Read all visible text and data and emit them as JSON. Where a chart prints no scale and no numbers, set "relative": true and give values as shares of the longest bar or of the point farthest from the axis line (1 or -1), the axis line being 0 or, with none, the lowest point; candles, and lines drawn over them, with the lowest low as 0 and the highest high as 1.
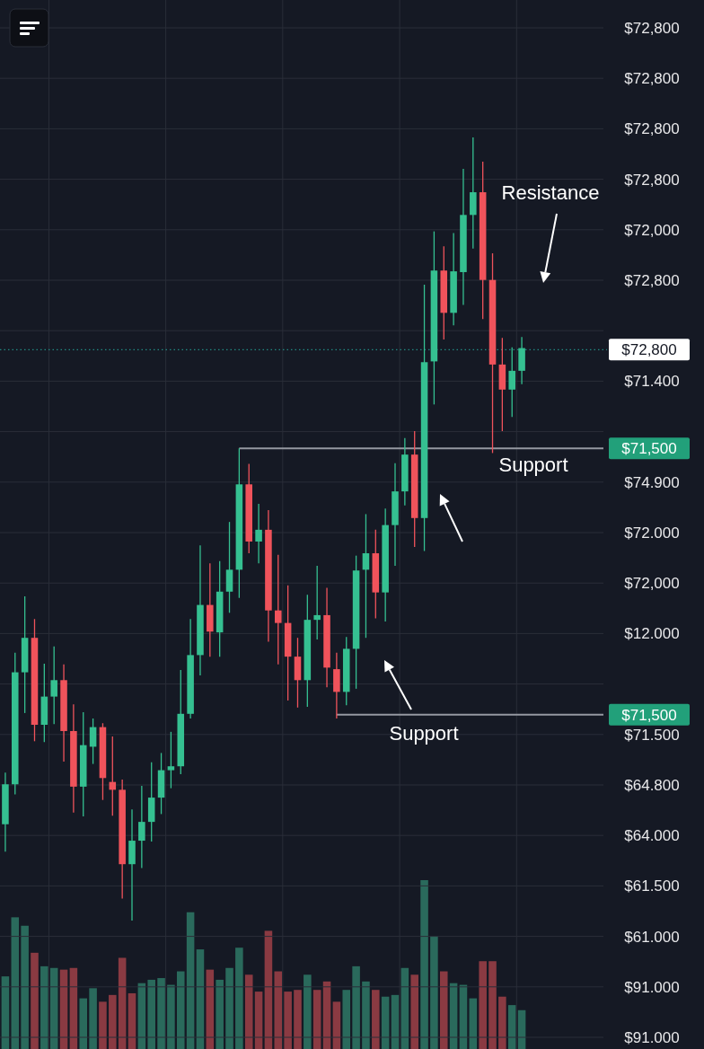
{
  "chart_data": [
    {
      "type": "candlestick",
      "relative": true,
      "grid": true,
      "categories": [
        null,
        null,
        null,
        null,
        null,
        null,
        null,
        null,
        null,
        null,
        null,
        null,
        null,
        null,
        null,
        null,
        null,
        null,
        null,
        null,
        null,
        null,
        null,
        null,
        null,
        null,
        null,
        null,
        null,
        null,
        null,
        null,
        null,
        null,
        null,
        null,
        null,
        null,
        null,
        null,
        null,
        null,
        null,
        null,
        null,
        null,
        null,
        null,
        null,
        null,
        null,
        null,
        null,
        null
      ],
      "ohlc": [
        [
          0.123,
          0.189,
          0.088,
          0.174
        ],
        [
          0.174,
          0.342,
          0.161,
          0.317
        ],
        [
          0.317,
          0.414,
          0.265,
          0.361
        ],
        [
          0.361,
          0.385,
          0.229,
          0.25
        ],
        [
          0.25,
          0.328,
          0.228,
          0.286
        ],
        [
          0.286,
          0.35,
          0.251,
          0.307
        ],
        [
          0.307,
          0.327,
          0.203,
          0.242
        ],
        [
          0.242,
          0.276,
          0.138,
          0.171
        ],
        [
          0.171,
          0.266,
          0.133,
          0.224
        ],
        [
          0.222,
          0.258,
          0.2,
          0.247
        ],
        [
          0.247,
          0.252,
          0.154,
          0.182
        ],
        [
          0.177,
          0.235,
          0.134,
          0.167
        ],
        [
          0.167,
          0.18,
          0.028,
          0.072
        ],
        [
          0.072,
          0.142,
          0,
          0.102
        ],
        [
          0.102,
          0.172,
          0.067,
          0.126
        ],
        [
          0.126,
          0.202,
          0.101,
          0.157
        ],
        [
          0.157,
          0.214,
          0.136,
          0.192
        ],
        [
          0.192,
          0.241,
          0.169,
          0.197
        ],
        [
          0.197,
          0.32,
          0.187,
          0.264
        ],
        [
          0.264,
          0.385,
          0.258,
          0.339
        ],
        [
          0.339,
          0.479,
          0.313,
          0.403
        ],
        [
          0.403,
          0.456,
          0.337,
          0.369
        ],
        [
          0.368,
          0.459,
          0.337,
          0.42
        ],
        [
          0.42,
          0.509,
          0.393,
          0.448
        ],
        [
          0.448,
          0.603,
          0.412,
          0.557
        ],
        [
          0.557,
          0.583,
          0.469,
          0.484
        ],
        [
          0.484,
          0.532,
          0.456,
          0.499
        ],
        [
          0.499,
          0.524,
          0.356,
          0.396
        ],
        [
          0.396,
          0.467,
          0.327,
          0.38
        ],
        [
          0.38,
          0.428,
          0.281,
          0.337
        ],
        [
          0.337,
          0.361,
          0.272,
          0.307
        ],
        [
          0.307,
          0.416,
          0.273,
          0.384
        ],
        [
          0.384,
          0.453,
          0.359,
          0.39
        ],
        [
          0.39,
          0.425,
          0.298,
          0.323
        ],
        [
          0.321,
          0.342,
          0.258,
          0.292
        ],
        [
          0.292,
          0.362,
          0.275,
          0.347
        ],
        [
          0.347,
          0.466,
          0.296,
          0.447
        ],
        [
          0.448,
          0.519,
          0.361,
          0.469
        ],
        [
          0.469,
          0.499,
          0.386,
          0.419
        ],
        [
          0.419,
          0.526,
          0.382,
          0.505
        ],
        [
          0.505,
          0.584,
          0.453,
          0.548
        ],
        [
          0.548,
          0.616,
          0.53,
          0.595
        ],
        [
          0.595,
          0.625,
          0.477,
          0.514
        ],
        [
          0.514,
          0.812,
          0.472,
          0.713
        ],
        [
          0.714,
          0.88,
          0.659,
          0.83
        ],
        [
          0.83,
          0.861,
          0.742,
          0.776
        ],
        [
          0.776,
          0.878,
          0.76,
          0.829
        ],
        [
          0.828,
          0.96,
          0.786,
          0.901
        ],
        [
          0.901,
          1,
          0.858,
          0.93
        ],
        [
          0.93,
          0.969,
          0.768,
          0.818
        ],
        [
          0.818,
          0.852,
          0.597,
          0.71
        ],
        [
          0.71,
          0.744,
          0.625,
          0.678
        ],
        [
          0.678,
          0.732,
          0.643,
          0.702
        ],
        [
          0.702,
          0.745,
          0.685,
          0.731
        ]
      ],
      "ref_lines": [
        {
          "axis": "y",
          "value": 0.729,
          "color": "#26a69a",
          "line_style": "dotted"
        },
        {
          "axis": "y",
          "value": 0.603,
          "color": "#9598a1",
          "line_style": "solid"
        },
        {
          "axis": "y",
          "value": 0.263,
          "color": "#9598a1",
          "line_style": "solid"
        }
      ],
      "annotations": [
        "Resistance",
        "Support",
        "Support",
        "$72,800",
        "$72,800",
        "$72,800",
        "$72,800",
        "$72,000",
        "$72,800",
        "$72,800",
        "$71.400",
        "$71,500",
        "$74.900",
        "$72.000",
        "$72,000",
        "$12.000",
        "$71,500",
        "$71.500",
        "$64.800",
        "$64.000",
        "$61.500",
        "$61.000",
        "$91.000",
        "$91.000"
      ]
    },
    {
      "type": "bar",
      "relative": true,
      "categories": [
        null,
        null,
        null,
        null,
        null,
        null,
        null,
        null,
        null,
        null,
        null,
        null,
        null,
        null,
        null,
        null,
        null,
        null,
        null,
        null,
        null,
        null,
        null,
        null,
        null,
        null,
        null,
        null,
        null,
        null,
        null,
        null,
        null,
        null,
        null,
        null,
        null,
        null,
        null,
        null,
        null,
        null,
        null,
        null,
        null,
        null,
        null,
        null,
        null,
        null,
        null,
        null,
        null,
        null
      ],
      "values": [
        0.43,
        0.78,
        0.73,
        0.57,
        0.49,
        0.48,
        0.47,
        0.48,
        0.3,
        0.36,
        0.28,
        0.32,
        0.54,
        0.33,
        0.39,
        0.41,
        0.42,
        0.38,
        0.46,
        0.81,
        0.59,
        0.47,
        0.41,
        0.48,
        0.6,
        0.44,
        0.34,
        0.7,
        0.46,
        0.34,
        0.35,
        0.44,
        0.35,
        0.4,
        0.28,
        0.35,
        0.49,
        0.4,
        0.35,
        0.31,
        0.32,
        0.48,
        0.44,
        1,
        0.67,
        0.46,
        0.39,
        0.38,
        0.3,
        0.52,
        0.52,
        0.31,
        0.26,
        0.23
      ],
      "colors": [
        "#2a6a5c",
        "#2a6a5c",
        "#2a6a5c",
        "#8a3a42",
        "#2a6a5c",
        "#2a6a5c",
        "#8a3a42",
        "#8a3a42",
        "#2a6a5c",
        "#2a6a5c",
        "#8a3a42",
        "#8a3a42",
        "#8a3a42",
        "#8a3a42",
        "#2a6a5c",
        "#2a6a5c",
        "#2a6a5c",
        "#2a6a5c",
        "#2a6a5c",
        "#2a6a5c",
        "#2a6a5c",
        "#8a3a42",
        "#2a6a5c",
        "#2a6a5c",
        "#2a6a5c",
        "#8a3a42",
        "#8a3a42",
        "#8a3a42",
        "#8a3a42",
        "#8a3a42",
        "#8a3a42",
        "#2a6a5c",
        "#8a3a42",
        "#8a3a42",
        "#8a3a42",
        "#2a6a5c",
        "#2a6a5c",
        "#2a6a5c",
        "#8a3a42",
        "#2a6a5c",
        "#2a6a5c",
        "#2a6a5c",
        "#8a3a42",
        "#2a6a5c",
        "#2a6a5c",
        "#8a3a42",
        "#2a6a5c",
        "#2a6a5c",
        "#2a6a5c",
        "#8a3a42",
        "#8a3a42",
        "#8a3a42",
        "#2a6a5c",
        "#2a6a5c"
      ]
    }
  ]
}
